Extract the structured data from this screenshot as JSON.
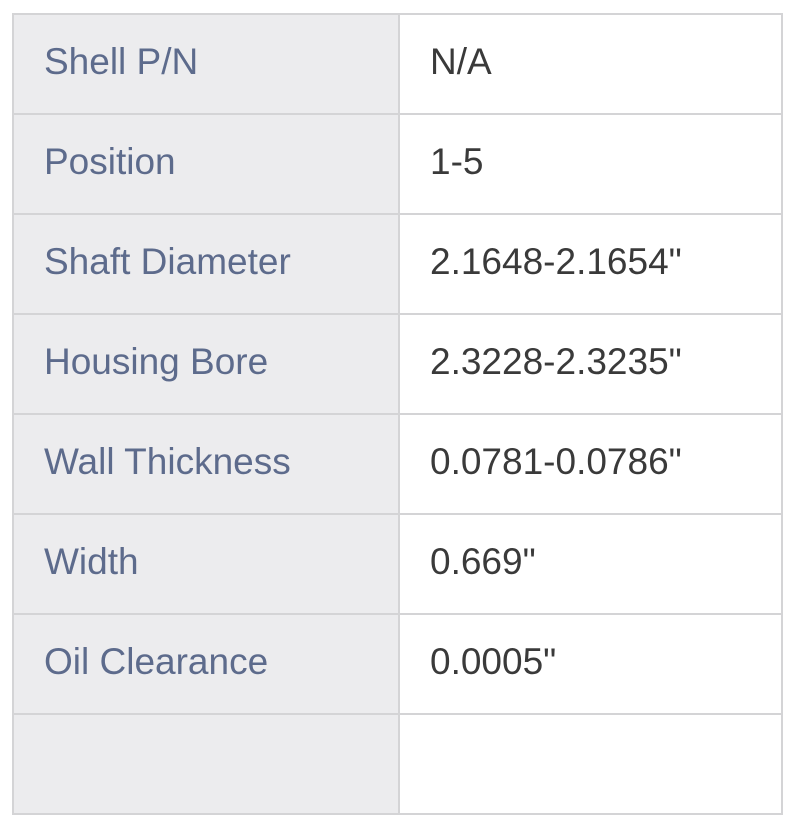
{
  "specs": [
    {
      "label": "Shell P/N",
      "value": "N/A"
    },
    {
      "label": "Position",
      "value": "1-5"
    },
    {
      "label": "Shaft Diameter",
      "value": "2.1648-2.1654\""
    },
    {
      "label": "Housing Bore",
      "value": "2.3228-2.3235\""
    },
    {
      "label": "Wall Thickness",
      "value": "0.0781-0.0786\""
    },
    {
      "label": "Width",
      "value": "0.669\""
    },
    {
      "label": "Oil Clearance",
      "value": "0.0005\""
    }
  ]
}
